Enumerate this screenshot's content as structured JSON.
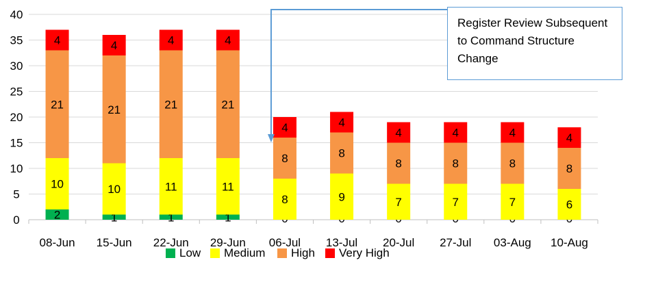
{
  "chart_data": {
    "type": "bar",
    "stacked": true,
    "title": "",
    "xlabel": "",
    "ylabel": "",
    "ylim": [
      0,
      40
    ],
    "yticks": [
      0,
      5,
      10,
      15,
      20,
      25,
      30,
      35,
      40
    ],
    "grid": true,
    "legend_position": "bottom",
    "categories": [
      "08-Jun",
      "15-Jun",
      "22-Jun",
      "29-Jun",
      "06-Jul",
      "13-Jul",
      "20-Jul",
      "27-Jul",
      "03-Aug",
      "10-Aug"
    ],
    "series": [
      {
        "name": "Low",
        "color": "#00b050",
        "values": [
          2,
          1,
          1,
          1,
          0,
          0,
          0,
          0,
          0,
          0
        ]
      },
      {
        "name": "Medium",
        "color": "#ffff00",
        "values": [
          10,
          10,
          11,
          11,
          8,
          9,
          7,
          7,
          7,
          6
        ]
      },
      {
        "name": "High",
        "color": "#f79646",
        "values": [
          21,
          21,
          21,
          21,
          8,
          8,
          8,
          8,
          8,
          8
        ]
      },
      {
        "name": "Very High",
        "color": "#ff0000",
        "values": [
          4,
          4,
          4,
          4,
          4,
          4,
          4,
          4,
          4,
          4
        ]
      }
    ],
    "annotation": {
      "lines": [
        "Register Review Subsequent",
        "to Command Structure",
        "Change"
      ],
      "arrow_color": "#5b9bd5",
      "points_to_category": "06-Jul"
    }
  }
}
